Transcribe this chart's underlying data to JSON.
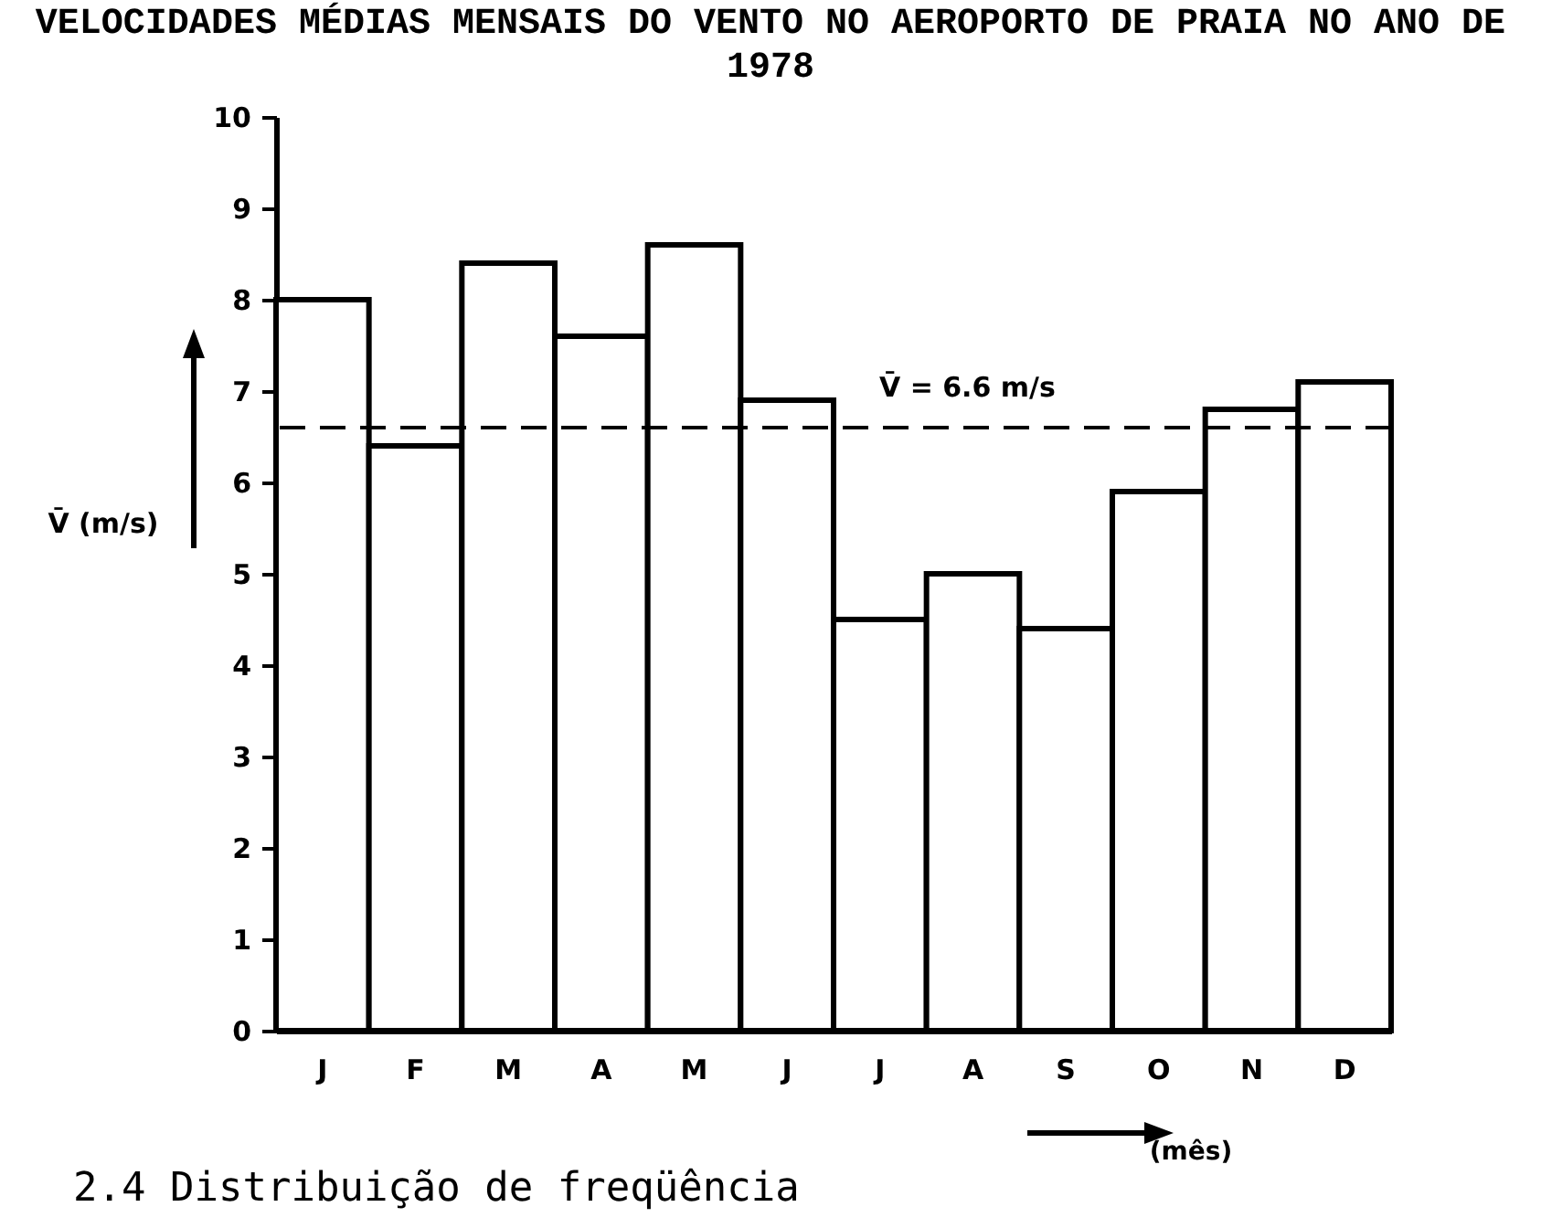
{
  "chart_data": {
    "type": "bar",
    "title": "VELOCIDADES MÉDIAS MENSAIS DO VENTO NO AEROPORTO DE PRAIA NO ANO DE 1978",
    "xlabel": "(mês)",
    "ylabel": "V̄ (m/s)",
    "categories": [
      "J",
      "F",
      "M",
      "A",
      "M",
      "J",
      "J",
      "A",
      "S",
      "O",
      "N",
      "D"
    ],
    "values": [
      8.0,
      6.4,
      8.4,
      7.6,
      8.6,
      6.9,
      4.5,
      5.0,
      4.4,
      5.9,
      6.8,
      7.1
    ],
    "color": "#ffffff",
    "ylim": [
      0,
      10
    ],
    "yticks": [
      0,
      1,
      2,
      3,
      4,
      5,
      6,
      7,
      8,
      9,
      10
    ],
    "grid": false,
    "ref_lines": [
      {
        "axis": "y",
        "value": 6.6,
        "label": "V̄ = 6.6 m/s",
        "line_style": "dashed",
        "color": "#000000"
      }
    ],
    "annotations": [
      "2.4  Distribuição de freqüência"
    ]
  }
}
